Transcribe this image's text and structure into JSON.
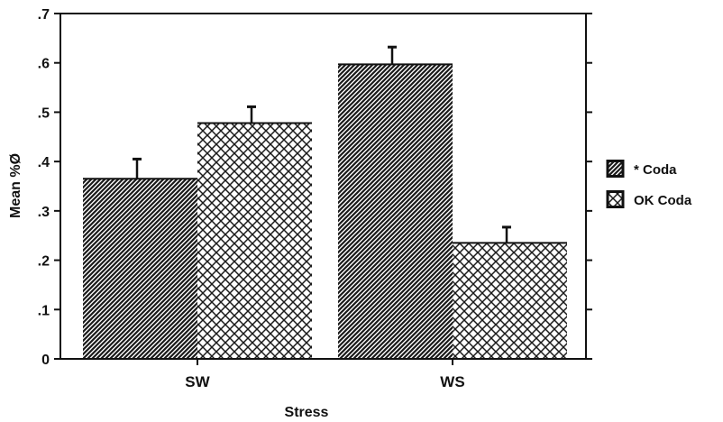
{
  "chart_data": {
    "type": "bar",
    "title": "",
    "xlabel": "Stress",
    "ylabel": "Mean %Ø",
    "categories": [
      "SW",
      "WS"
    ],
    "series": [
      {
        "name": "* Coda",
        "values": [
          0.365,
          0.597
        ],
        "errors": [
          0.04,
          0.035
        ],
        "pattern": "diagonal"
      },
      {
        "name": "OK Coda",
        "values": [
          0.478,
          0.235
        ],
        "errors": [
          0.033,
          0.032
        ],
        "pattern": "crosshatch"
      }
    ],
    "ylim": [
      0,
      0.7
    ],
    "yticks": [
      0,
      0.1,
      0.2,
      0.3,
      0.4,
      0.5,
      0.6,
      0.7
    ],
    "ytick_labels": [
      "0",
      ".1",
      ".2",
      ".3",
      ".4",
      ".5",
      ".6",
      ".7"
    ],
    "grid": false,
    "legend_position": "right"
  }
}
